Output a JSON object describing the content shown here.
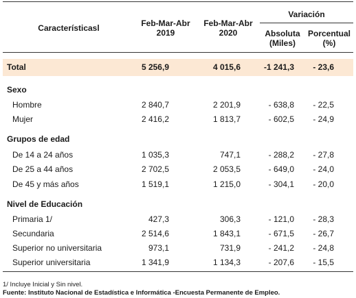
{
  "header": {
    "caracteristicas": "Característicasl",
    "col1_line1": "Feb-Mar-Abr",
    "col1_line2": "2019",
    "col2_line1": "Feb-Mar-Abr",
    "col2_line2": "2020",
    "variacion": "Variación",
    "absoluta_line1": "Absoluta",
    "absoluta_line2": "(Miles)",
    "porcentual_line1": "Porcentual",
    "porcentual_line2": "(%)"
  },
  "total": {
    "label": "Total",
    "v2019": "5 256,9",
    "v2020": "4 015,6",
    "abs": "-1 241,3",
    "pct": "- 23,6"
  },
  "sections": [
    {
      "title": "Sexo",
      "rows": [
        {
          "label": "Hombre",
          "v2019": "2 840,7",
          "v2020": "2 201,9",
          "abs": "- 638,8",
          "pct": "- 22,5"
        },
        {
          "label": "Mujer",
          "v2019": "2 416,2",
          "v2020": "1 813,7",
          "abs": "- 602,5",
          "pct": "- 24,9"
        }
      ]
    },
    {
      "title": "Grupos de edad",
      "rows": [
        {
          "label": "De 14 a 24 años",
          "v2019": "1 035,3",
          "v2020": "747,1",
          "abs": "- 288,2",
          "pct": "- 27,8"
        },
        {
          "label": "De 25 a 44 años",
          "v2019": "2 702,5",
          "v2020": "2 053,5",
          "abs": "- 649,0",
          "pct": "- 24,0"
        },
        {
          "label": "De 45 y más años",
          "v2019": "1 519,1",
          "v2020": "1 215,0",
          "abs": "- 304,1",
          "pct": "- 20,0"
        }
      ]
    },
    {
      "title": "Nivel de Educación",
      "rows": [
        {
          "label": "Primaria 1/",
          "v2019": "427,3",
          "v2020": "306,3",
          "abs": "- 121,0",
          "pct": "- 28,3"
        },
        {
          "label": "Secundaria",
          "v2019": "2 514,6",
          "v2020": "1 843,1",
          "abs": "- 671,5",
          "pct": "- 26,7"
        },
        {
          "label": "Superior no universitaria",
          "v2019": "973,1",
          "v2020": "731,9",
          "abs": "- 241,2",
          "pct": "- 24,8"
        },
        {
          "label": "Superior universitaria",
          "v2019": "1 341,9",
          "v2020": "1 134,3",
          "abs": "- 207,6",
          "pct": "- 15,5"
        }
      ]
    }
  ],
  "notes": {
    "note1": "1/ Incluye Inicial y Sin nivel.",
    "source": "Fuente: Instituto Nacional de Estadística e Informática -Encuesta Permanente de Empleo."
  }
}
